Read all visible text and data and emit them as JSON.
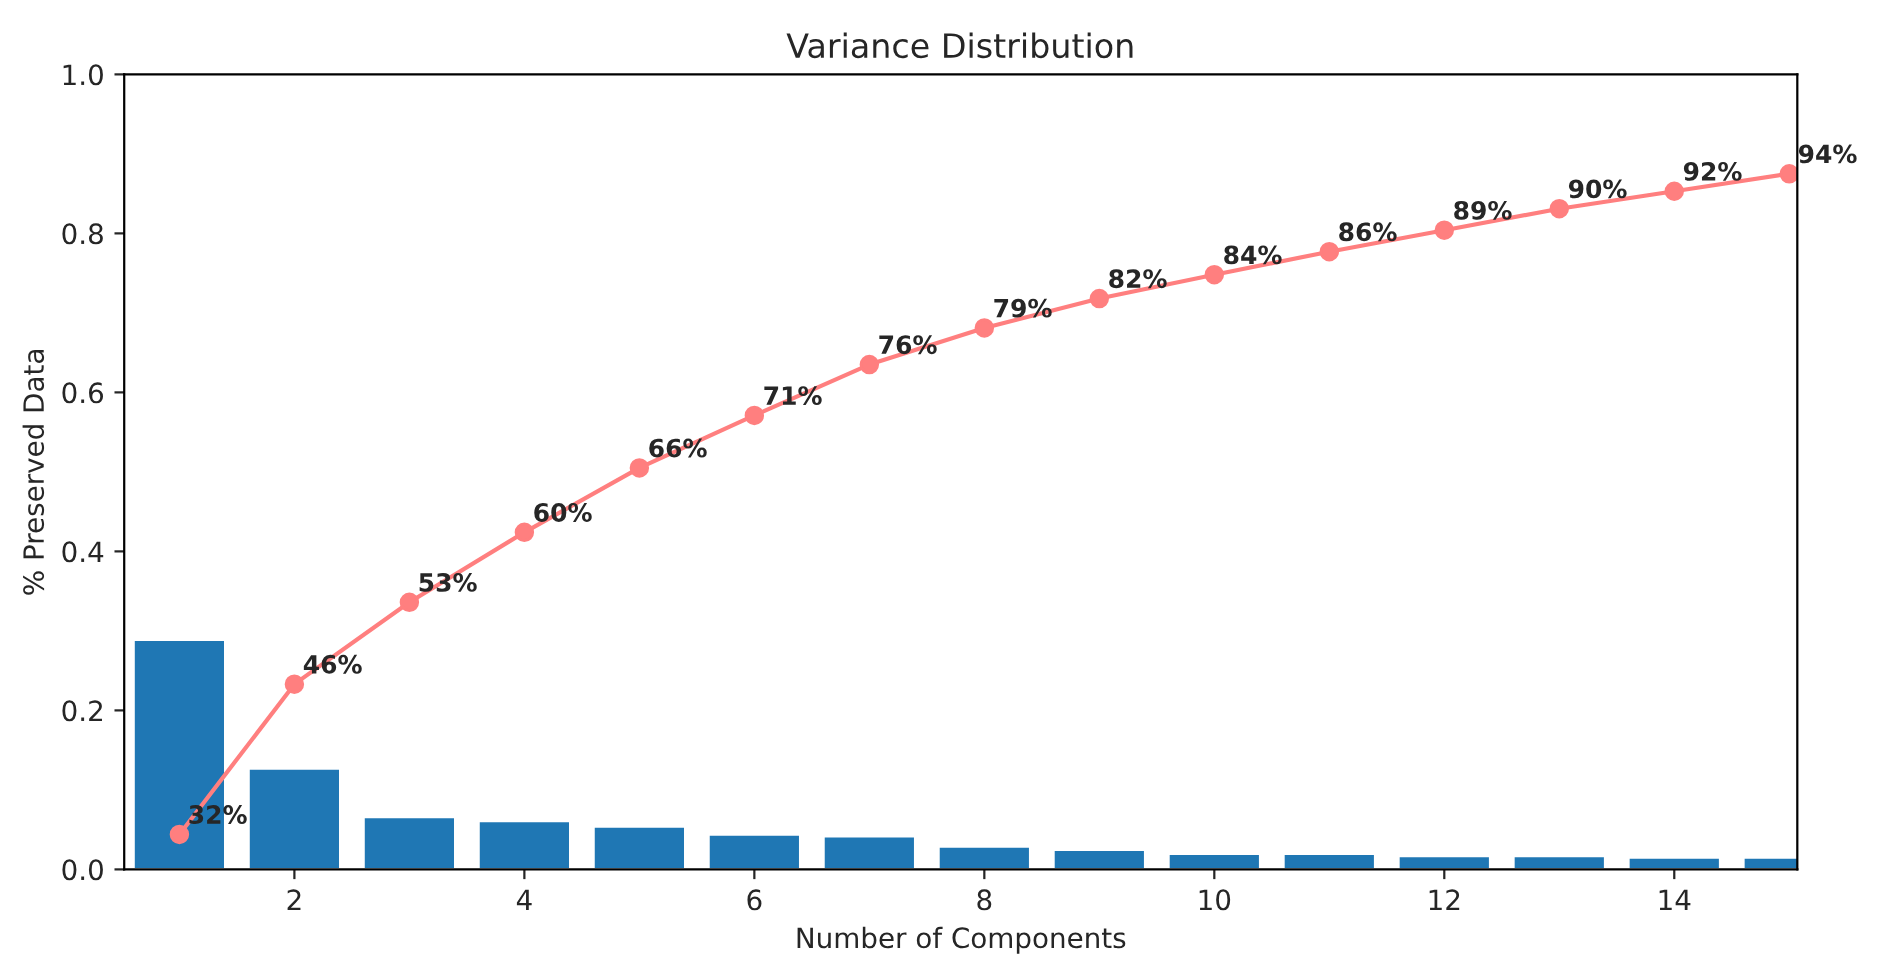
{
  "chart_data": {
    "type": "bar",
    "title": "Variance Distribution",
    "xlabel": "Number of Components",
    "ylabel": "% Preserved Data",
    "x": [
      1,
      2,
      3,
      4,
      5,
      6,
      7,
      8,
      9,
      10,
      11,
      12,
      13,
      14,
      15
    ],
    "series": [
      {
        "color": "#1f77b4",
        "values": [
          0.289,
          0.127,
          0.066,
          0.061,
          0.054,
          0.044,
          0.042,
          0.029,
          0.025,
          0.02,
          0.02,
          0.017,
          0.017,
          0.015,
          0.015
        ]
      },
      {
        "type": "line",
        "color": "#ff7f7f",
        "marker": "circle",
        "values": [
          0.044,
          0.233,
          0.336,
          0.424,
          0.505,
          0.571,
          0.635,
          0.681,
          0.718,
          0.748,
          0.777,
          0.804,
          0.831,
          0.853,
          0.875
        ]
      }
    ],
    "annotations": [
      {
        "text": "32%",
        "x": 1,
        "y": 0.044
      },
      {
        "text": "46%",
        "x": 2,
        "y": 0.233
      },
      {
        "text": "53%",
        "x": 3,
        "y": 0.336
      },
      {
        "text": "60%",
        "x": 4,
        "y": 0.424
      },
      {
        "text": "66%",
        "x": 5,
        "y": 0.505
      },
      {
        "text": "71%",
        "x": 6,
        "y": 0.571
      },
      {
        "text": "76%",
        "x": 7,
        "y": 0.635
      },
      {
        "text": "79%",
        "x": 8,
        "y": 0.681
      },
      {
        "text": "82%",
        "x": 9,
        "y": 0.718
      },
      {
        "text": "84%",
        "x": 10,
        "y": 0.748
      },
      {
        "text": "86%",
        "x": 11,
        "y": 0.777
      },
      {
        "text": "89%",
        "x": 12,
        "y": 0.804
      },
      {
        "text": "90%",
        "x": 13,
        "y": 0.831
      },
      {
        "text": "92%",
        "x": 14,
        "y": 0.853
      },
      {
        "text": "94%",
        "x": 15,
        "y": 0.875
      }
    ],
    "xlim": [
      0.52,
      15.07
    ],
    "xticks": [
      2,
      4,
      6,
      8,
      10,
      12,
      14
    ],
    "ylim": [
      0,
      1.0
    ],
    "yticks": [
      {
        "value": 0,
        "label": "0.0"
      },
      {
        "value": 0.2,
        "label": "0.2"
      },
      {
        "value": 0.4,
        "label": "0.4"
      },
      {
        "value": 0.6,
        "label": "0.6"
      },
      {
        "value": 0.8,
        "label": "0.8"
      },
      {
        "value": 1.0,
        "label": "1.0"
      }
    ],
    "grid": false
  }
}
